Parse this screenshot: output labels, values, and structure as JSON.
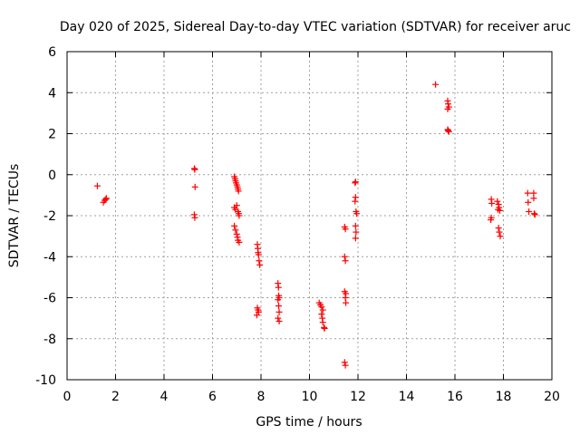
{
  "chart_data": {
    "type": "scatter",
    "title": "Day 020 of 2025, Sidereal Day-to-day VTEC variation (SDTVAR) for receiver aruc",
    "xlabel": "GPS time / hours",
    "ylabel": "SDTVAR / TECUs",
    "xlim": [
      0,
      20
    ],
    "ylim": [
      -10,
      6
    ],
    "xticks": [
      0,
      2,
      4,
      6,
      8,
      10,
      12,
      14,
      16,
      18,
      20
    ],
    "yticks": [
      -10,
      -8,
      -6,
      -4,
      -2,
      0,
      2,
      4,
      6
    ],
    "x_tick_labels": [
      "0",
      "2",
      "4",
      "6",
      "8",
      "10",
      "12",
      "14",
      "16",
      "18",
      "20"
    ],
    "y_tick_labels": [
      "-10",
      "-8",
      "-6",
      "-4",
      "-2",
      "0",
      "2",
      "4",
      "6"
    ],
    "grid": true,
    "marker": "plus",
    "color": "#ff0000",
    "series": [
      {
        "name": "SDTVAR",
        "points": [
          [
            1.25,
            -0.55
          ],
          [
            1.5,
            -1.35
          ],
          [
            1.55,
            -1.25
          ],
          [
            1.6,
            -1.2
          ],
          [
            1.62,
            -1.15
          ],
          [
            5.25,
            0.3
          ],
          [
            5.27,
            0.25
          ],
          [
            5.28,
            -0.6
          ],
          [
            5.25,
            -1.95
          ],
          [
            5.27,
            -2.1
          ],
          [
            6.9,
            -0.1
          ],
          [
            6.93,
            -0.2
          ],
          [
            6.95,
            -0.3
          ],
          [
            6.97,
            -0.4
          ],
          [
            7.0,
            -0.5
          ],
          [
            7.03,
            -0.6
          ],
          [
            7.05,
            -0.7
          ],
          [
            7.07,
            -0.8
          ],
          [
            6.9,
            -1.6
          ],
          [
            6.95,
            -1.7
          ],
          [
            7.0,
            -1.5
          ],
          [
            7.05,
            -1.8
          ],
          [
            7.08,
            -1.9
          ],
          [
            7.1,
            -2.0
          ],
          [
            6.9,
            -2.5
          ],
          [
            6.95,
            -2.7
          ],
          [
            7.0,
            -2.9
          ],
          [
            7.03,
            -3.05
          ],
          [
            7.05,
            -3.2
          ],
          [
            7.1,
            -3.3
          ],
          [
            7.85,
            -3.4
          ],
          [
            7.87,
            -3.6
          ],
          [
            7.88,
            -3.8
          ],
          [
            7.9,
            -3.9
          ],
          [
            7.92,
            -4.2
          ],
          [
            7.95,
            -4.4
          ],
          [
            7.85,
            -6.5
          ],
          [
            7.88,
            -6.6
          ],
          [
            7.9,
            -6.7
          ],
          [
            7.83,
            -6.85
          ],
          [
            8.7,
            -5.3
          ],
          [
            8.72,
            -5.5
          ],
          [
            8.73,
            -5.9
          ],
          [
            8.75,
            -6.0
          ],
          [
            8.7,
            -6.1
          ],
          [
            8.73,
            -6.4
          ],
          [
            8.75,
            -6.7
          ],
          [
            8.7,
            -7.0
          ],
          [
            8.75,
            -7.15
          ],
          [
            10.4,
            -6.25
          ],
          [
            10.45,
            -6.35
          ],
          [
            10.5,
            -6.45
          ],
          [
            10.55,
            -6.6
          ],
          [
            10.5,
            -6.8
          ],
          [
            10.53,
            -7.0
          ],
          [
            10.55,
            -7.2
          ],
          [
            10.6,
            -7.45
          ],
          [
            10.62,
            -7.5
          ],
          [
            11.45,
            -2.55
          ],
          [
            11.48,
            -2.65
          ],
          [
            11.45,
            -4.0
          ],
          [
            11.48,
            -4.2
          ],
          [
            11.45,
            -5.7
          ],
          [
            11.5,
            -5.8
          ],
          [
            11.48,
            -6.0
          ],
          [
            11.5,
            -6.25
          ],
          [
            11.45,
            -9.15
          ],
          [
            11.48,
            -9.3
          ],
          [
            11.88,
            -0.4
          ],
          [
            11.9,
            -0.35
          ],
          [
            11.9,
            -1.1
          ],
          [
            11.88,
            -1.3
          ],
          [
            11.92,
            -1.8
          ],
          [
            11.95,
            -1.9
          ],
          [
            11.9,
            -2.5
          ],
          [
            11.92,
            -2.8
          ],
          [
            11.9,
            -3.1
          ],
          [
            15.2,
            4.4
          ],
          [
            15.7,
            3.6
          ],
          [
            15.72,
            3.45
          ],
          [
            15.75,
            3.3
          ],
          [
            15.7,
            3.2
          ],
          [
            15.7,
            2.2
          ],
          [
            15.72,
            2.15
          ],
          [
            15.75,
            2.1
          ],
          [
            17.5,
            -1.2
          ],
          [
            17.52,
            -1.4
          ],
          [
            17.5,
            -2.1
          ],
          [
            17.48,
            -2.2
          ],
          [
            17.75,
            -1.3
          ],
          [
            17.8,
            -1.45
          ],
          [
            17.82,
            -1.6
          ],
          [
            17.78,
            -1.7
          ],
          [
            17.85,
            -1.75
          ],
          [
            17.8,
            -2.6
          ],
          [
            17.83,
            -2.8
          ],
          [
            17.87,
            -3.0
          ],
          [
            19.0,
            -0.9
          ],
          [
            19.02,
            -1.35
          ],
          [
            19.05,
            -1.8
          ],
          [
            19.25,
            -0.9
          ],
          [
            19.25,
            -1.15
          ],
          [
            19.27,
            -1.9
          ],
          [
            19.3,
            -1.95
          ]
        ]
      }
    ]
  }
}
